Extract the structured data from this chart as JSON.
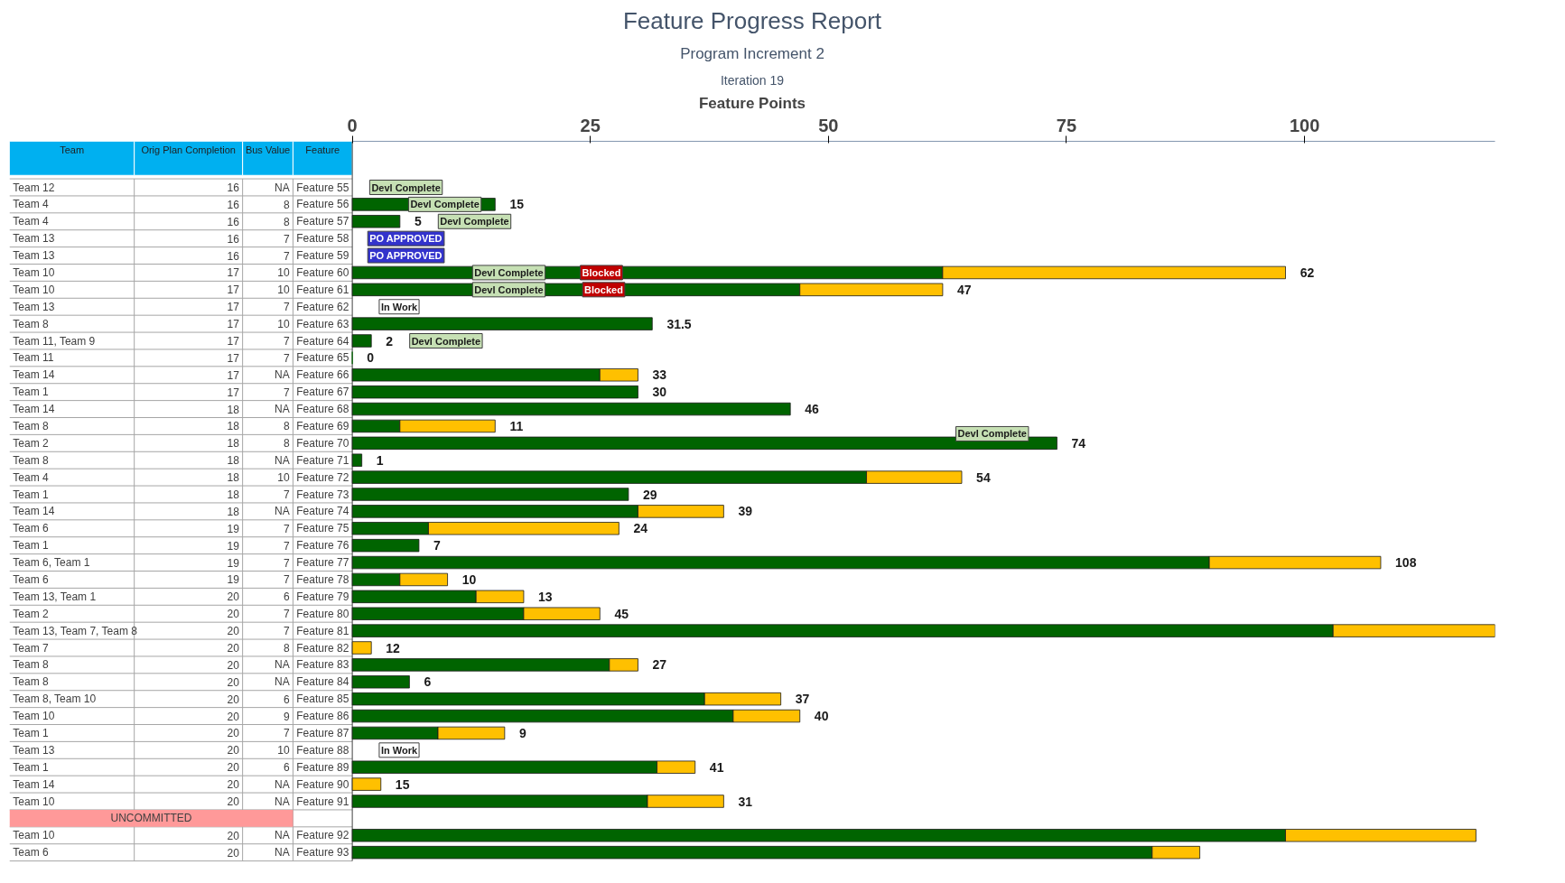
{
  "chart_data": {
    "type": "bar",
    "orientation": "horizontal",
    "stacked": true,
    "subtitle": "Program Increment 2",
    "title": "Feature Progress Report",
    "xlabel": "Feature Points",
    "categories": [
      "Feature 55",
      "Feature 56",
      "Feature 57",
      "Feature 58",
      "Feature 59",
      "Feature 60",
      "Feature 61",
      "Feature 62",
      "Feature 63",
      "Feature 64",
      "Feature 65",
      "Feature 66",
      "Feature 67",
      "Feature 68",
      "Feature 69",
      "Feature 70",
      "Feature 71",
      "Feature 72",
      "Feature 73",
      "Feature 74",
      "Feature 75",
      "Feature 76",
      "Feature 77",
      "Feature 78",
      "Feature 79",
      "Feature 80",
      "Feature 81",
      "Feature 82",
      "Feature 83",
      "Feature 84",
      "Feature 85",
      "Feature 86",
      "Feature 87",
      "Feature 88",
      "Feature 89",
      "Feature 90",
      "Feature 91",
      null,
      "Feature 92",
      "Feature 93"
    ],
    "series": [
      {
        "color": "#006400",
        "values": [
          null,
          15,
          5,
          null,
          null,
          62,
          47,
          null,
          31.5,
          2,
          0,
          26,
          30,
          46,
          5,
          74,
          1,
          54,
          29,
          30,
          8,
          7,
          90,
          5,
          13,
          18,
          103,
          null,
          27,
          6,
          37,
          40,
          9,
          null,
          32,
          null,
          31,
          null,
          98,
          84
        ]
      },
      {
        "color": "#ffc000",
        "values": [
          null,
          null,
          null,
          null,
          null,
          36,
          15,
          null,
          null,
          null,
          null,
          4,
          null,
          null,
          10,
          null,
          null,
          10,
          null,
          9,
          20,
          null,
          18,
          5,
          5,
          8,
          17,
          2,
          3,
          null,
          8,
          7,
          7,
          null,
          4,
          3,
          8,
          null,
          20,
          5
        ]
      }
    ],
    "xlim": [
      0,
      120
    ],
    "xticks": [
      0,
      25,
      50,
      75,
      100
    ],
    "annotations": [
      "Iteration 19",
      "Team",
      "Orig Plan Completion",
      "Bus Value",
      "Feature",
      "UNCOMMITTED",
      "Team 12",
      "16",
      "NA",
      "Team 4",
      "16",
      "8",
      "Team 4",
      "16",
      "8",
      "Team 13",
      "16",
      "7",
      "Team 13",
      "16",
      "7",
      "Team 10",
      "17",
      "10",
      "Team 10",
      "17",
      "10",
      "Team 13",
      "17",
      "7",
      "Team 8",
      "17",
      "10",
      "Team 11, Team 9",
      "17",
      "7",
      "Team 11",
      "17",
      "7",
      "Team 14",
      "17",
      "NA",
      "Team 1",
      "17",
      "7",
      "Team 14",
      "18",
      "NA",
      "Team 8",
      "18",
      "8",
      "Team 2",
      "18",
      "8",
      "Team 8",
      "18",
      "NA",
      "Team 4",
      "18",
      "10",
      "Team 1",
      "18",
      "7",
      "Team 14",
      "18",
      "NA",
      "Team 6",
      "19",
      "7",
      "Team 1",
      "19",
      "7",
      "Team 6, Team 1",
      "19",
      "7",
      "Team 6",
      "19",
      "7",
      "Team 13, Team 1",
      "20",
      "6",
      "Team 2",
      "20",
      "7",
      "Team 13, Team 7, Team 8",
      "20",
      "7",
      "Team 7",
      "20",
      "8",
      "Team 8",
      "20",
      "NA",
      "Team 8",
      "20",
      "NA",
      "Team 8, Team 10",
      "20",
      "6",
      "Team 10",
      "20",
      "9",
      "Team 1",
      "20",
      "7",
      "Team 13",
      "20",
      "10",
      "Team 1",
      "20",
      "6",
      "Team 14",
      "20",
      "NA",
      "Team 10",
      "20",
      "NA",
      "Team 10",
      "20",
      "NA",
      "Team 6",
      "20",
      "NA",
      "Devl Complete",
      "Devl Complete",
      "Devl Complete",
      "PO APPROVED",
      "PO APPROVED",
      "Devl Complete",
      "Blocked",
      "Devl Complete",
      "Blocked",
      "In Work",
      "Devl Complete",
      "Devl Complete",
      "In Work",
      {
        "text": "15",
        "x": 15,
        "y": "Feature 56"
      },
      {
        "text": "5",
        "x": 5,
        "y": "Feature 57"
      },
      {
        "text": "62",
        "x": 98,
        "y": "Feature 60"
      },
      {
        "text": "47",
        "x": 62,
        "y": "Feature 61"
      },
      {
        "text": "31.5",
        "x": 31.5,
        "y": "Feature 63"
      },
      {
        "text": "2",
        "x": 2,
        "y": "Feature 64"
      },
      {
        "text": "0",
        "x": 0,
        "y": "Feature 65"
      },
      {
        "text": "33",
        "x": 30,
        "y": "Feature 66"
      },
      {
        "text": "30",
        "x": 30,
        "y": "Feature 67"
      },
      {
        "text": "46",
        "x": 46,
        "y": "Feature 68"
      },
      {
        "text": "11",
        "x": 15,
        "y": "Feature 69"
      },
      {
        "text": "74",
        "x": 74,
        "y": "Feature 70"
      },
      {
        "text": "1",
        "x": 1,
        "y": "Feature 71"
      },
      {
        "text": "54",
        "x": 64,
        "y": "Feature 72"
      },
      {
        "text": "29",
        "x": 29,
        "y": "Feature 73"
      },
      {
        "text": "39",
        "x": 39,
        "y": "Feature 74"
      },
      {
        "text": "24",
        "x": 28,
        "y": "Feature 75"
      },
      {
        "text": "7",
        "x": 7,
        "y": "Feature 76"
      },
      {
        "text": "108",
        "x": 108,
        "y": "Feature 77"
      },
      {
        "text": "10",
        "x": 10,
        "y": "Feature 78"
      },
      {
        "text": "13",
        "x": 18,
        "y": "Feature 79"
      },
      {
        "text": "45",
        "x": 26,
        "y": "Feature 80"
      },
      {
        "text": "12",
        "x": 2,
        "y": "Feature 82"
      },
      {
        "text": "27",
        "x": 30,
        "y": "Feature 83"
      },
      {
        "text": "6",
        "x": 6,
        "y": "Feature 84"
      },
      {
        "text": "37",
        "x": 45,
        "y": "Feature 85"
      },
      {
        "text": "40",
        "x": 47,
        "y": "Feature 86"
      },
      {
        "text": "9",
        "x": 16,
        "y": "Feature 87"
      },
      {
        "text": "41",
        "x": 36,
        "y": "Feature 89"
      },
      {
        "text": "15",
        "x": 3,
        "y": "Feature 90"
      },
      {
        "text": "31",
        "x": 39,
        "y": "Feature 91"
      }
    ]
  }
}
